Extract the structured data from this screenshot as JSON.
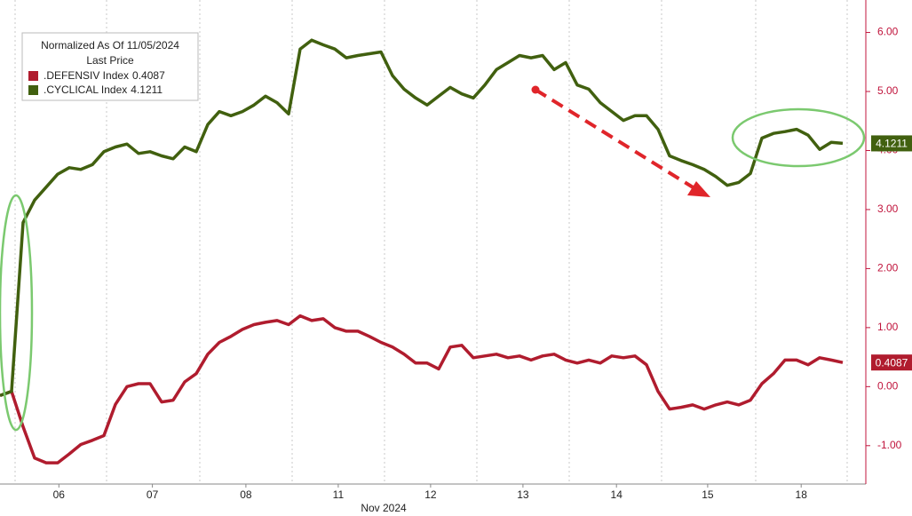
{
  "chart_data": {
    "type": "line",
    "legend_title": "Normalized As Of 11/05/2024",
    "legend_subtitle": "Last Price",
    "x_label": "Nov 2024",
    "ylim": [
      -1.65,
      6.55
    ],
    "yticks": [
      {
        "value": 6,
        "label": "6.00"
      },
      {
        "value": 5,
        "label": "5.00"
      },
      {
        "value": 4,
        "label": "4.00"
      },
      {
        "value": 3,
        "label": "3.00"
      },
      {
        "value": 2,
        "label": "2.00"
      },
      {
        "value": 1,
        "label": "1.00"
      },
      {
        "value": 0,
        "label": "0.00"
      },
      {
        "value": -1,
        "label": "-1.00"
      }
    ],
    "xticks": [
      {
        "value": 5.1,
        "label": "06"
      },
      {
        "value": 13.2,
        "label": "07"
      },
      {
        "value": 21.3,
        "label": "08"
      },
      {
        "value": 29.3,
        "label": "11"
      },
      {
        "value": 37.3,
        "label": "12"
      },
      {
        "value": 45.3,
        "label": "13"
      },
      {
        "value": 53.4,
        "label": "14"
      },
      {
        "value": 61.3,
        "label": "15"
      },
      {
        "value": 69.4,
        "label": "18"
      }
    ],
    "series": [
      {
        "name": ".DEFENSIV Index",
        "color": "#b01c2e",
        "values": [
          -0.15,
          -0.08,
          -0.68,
          -1.21,
          -1.29,
          -1.29,
          -1.14,
          -0.98,
          -0.91,
          -0.83,
          -0.3,
          0.0,
          0.05,
          0.05,
          -0.26,
          -0.23,
          0.08,
          0.22,
          0.55,
          0.75,
          0.85,
          0.97,
          1.05,
          1.09,
          1.12,
          1.05,
          1.2,
          1.12,
          1.15,
          1.0,
          0.94,
          0.94,
          0.85,
          0.75,
          0.67,
          0.55,
          0.4,
          0.4,
          0.3,
          0.67,
          0.7,
          0.49,
          0.52,
          0.55,
          0.49,
          0.52,
          0.45,
          0.52,
          0.55,
          0.45,
          0.4,
          0.45,
          0.4,
          0.52,
          0.49,
          0.52,
          0.37,
          -0.08,
          -0.38,
          -0.35,
          -0.31,
          -0.38,
          -0.31,
          -0.26,
          -0.31,
          -0.23,
          0.05,
          0.22,
          0.45,
          0.45,
          0.37,
          0.49,
          0.45,
          0.4087
        ]
      },
      {
        "name": ".CYCLICAL Index",
        "color": "#41600f",
        "values": [
          -0.15,
          -0.08,
          2.78,
          3.16,
          3.38,
          3.6,
          3.71,
          3.68,
          3.76,
          3.98,
          4.06,
          4.11,
          3.95,
          3.98,
          3.91,
          3.86,
          4.06,
          3.98,
          4.44,
          4.66,
          4.59,
          4.66,
          4.77,
          4.92,
          4.81,
          4.62,
          5.72,
          5.87,
          5.79,
          5.72,
          5.57,
          5.61,
          5.64,
          5.67,
          5.27,
          5.04,
          4.89,
          4.77,
          4.92,
          5.07,
          4.96,
          4.89,
          5.11,
          5.37,
          5.49,
          5.61,
          5.57,
          5.61,
          5.37,
          5.49,
          5.11,
          5.04,
          4.81,
          4.66,
          4.51,
          4.59,
          4.59,
          4.36,
          3.91,
          3.83,
          3.76,
          3.68,
          3.56,
          3.41,
          3.46,
          3.61,
          4.21,
          4.29,
          4.32,
          4.36,
          4.26,
          4.02,
          4.14,
          4.1211
        ]
      }
    ]
  }
}
